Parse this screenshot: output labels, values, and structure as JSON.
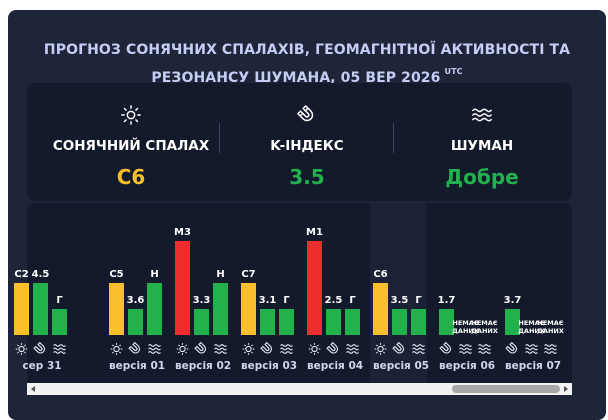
{
  "header": {
    "title_line1": "ПРОГНОЗ СОНЯЧНИХ СПАЛАХІВ, ГЕОМАГНІТНОЇ АКТИВНОСТІ ТА",
    "title_line2": "РЕЗОНАНСУ ШУМАНА, 05 ВЕР 2026",
    "utc": "UTC"
  },
  "summary": {
    "solar": {
      "icon": "sun-icon",
      "label": "СОНЯЧНИЙ СПАЛАХ",
      "value": "C6",
      "color": "#f9bf2c"
    },
    "kindex": {
      "icon": "magnet-icon",
      "label": "K-ІНДЕКС",
      "value": "3.5",
      "color": "#22b14c"
    },
    "schumann": {
      "icon": "waves-icon",
      "label": "ШУМАН",
      "value": "Добре",
      "color": "#22b14c"
    }
  },
  "timeline": {
    "colors": {
      "solar": "#f9bf2c",
      "kindex": "#22b14c",
      "schumann": "#22b14c",
      "alert": "#ef2d2d"
    },
    "days": [
      {
        "date": "сер 31",
        "bars": [
          {
            "type": "solar",
            "label": "C2",
            "level": 0.55
          },
          {
            "type": "kindex",
            "label": "4.5",
            "level": 0.55
          },
          {
            "type": "schumann",
            "label": "Г",
            "level": 0.28
          }
        ]
      },
      {
        "date": "версія 01",
        "bars": [
          {
            "type": "solar",
            "label": "C5",
            "level": 0.55
          },
          {
            "type": "kindex",
            "label": "3.6",
            "level": 0.28
          },
          {
            "type": "schumann",
            "label": "Н",
            "level": 0.55
          }
        ]
      },
      {
        "date": "версія 02",
        "bars": [
          {
            "type": "alert",
            "label": "M3",
            "level": 1.0
          },
          {
            "type": "kindex",
            "label": "3.3",
            "level": 0.28
          },
          {
            "type": "schumann",
            "label": "Н",
            "level": 0.55
          }
        ]
      },
      {
        "date": "версія 03",
        "bars": [
          {
            "type": "solar",
            "label": "C7",
            "level": 0.55
          },
          {
            "type": "kindex",
            "label": "3.1",
            "level": 0.28
          },
          {
            "type": "schumann",
            "label": "Г",
            "level": 0.28
          }
        ]
      },
      {
        "date": "версія 04",
        "bars": [
          {
            "type": "alert",
            "label": "M1",
            "level": 1.0
          },
          {
            "type": "kindex",
            "label": "2.5",
            "level": 0.28
          },
          {
            "type": "schumann",
            "label": "Г",
            "level": 0.28
          }
        ]
      },
      {
        "date": "версія 05",
        "bars": [
          {
            "type": "solar",
            "label": "C6",
            "level": 0.55
          },
          {
            "type": "kindex",
            "label": "3.5",
            "level": 0.28
          },
          {
            "type": "schumann",
            "label": "Г",
            "level": 0.28
          }
        ]
      },
      {
        "date": "версія 06",
        "bars": [
          {
            "type": "kindex",
            "label": "1.7",
            "level": 0.28
          },
          {
            "type": "nodata",
            "label": "НЕМАЄ ДАНИХ",
            "level": 0
          },
          {
            "type": "nodata",
            "label": "НЕМАЄ ДАНИХ",
            "level": 0
          }
        ]
      },
      {
        "date": "версія 07",
        "bars": [
          {
            "type": "kindex",
            "label": "3.7",
            "level": 0.28
          },
          {
            "type": "nodata",
            "label": "НЕМАЄ ДАНИХ",
            "level": 0
          },
          {
            "type": "nodata",
            "label": "НЕМАЄ ДАНИХ",
            "level": 0
          }
        ]
      }
    ]
  },
  "scrollbar": {
    "left_icon": "arrow-left-icon",
    "right_icon": "arrow-right-icon"
  }
}
